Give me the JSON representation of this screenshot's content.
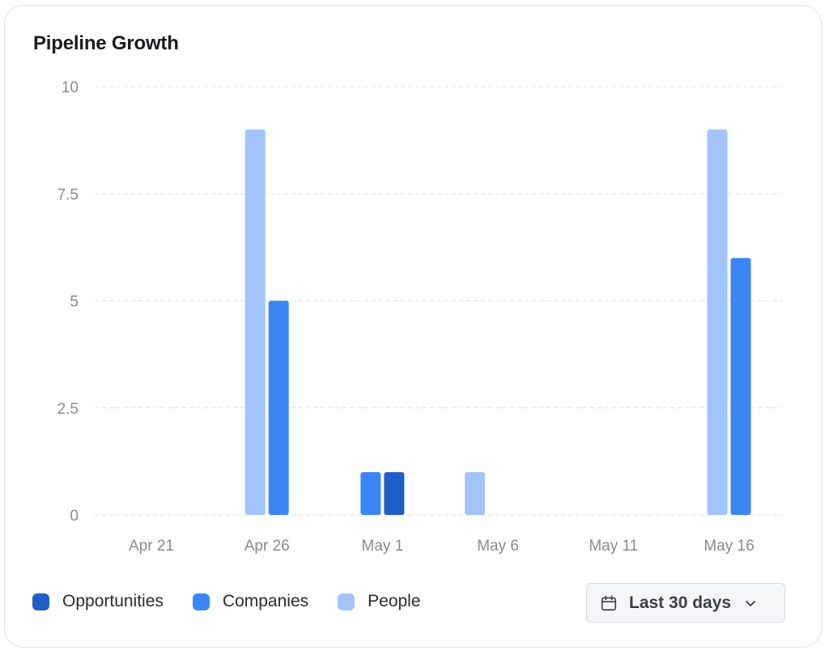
{
  "card": {
    "title": "Pipeline Growth"
  },
  "colors": {
    "opportunities": "#1f5fc7",
    "companies": "#3b86f6",
    "people": "#a1c4fa",
    "grid": "#dddfe3",
    "tick": "#8a8a90"
  },
  "legend": [
    {
      "name": "Opportunities",
      "color": "#1f5fc7"
    },
    {
      "name": "Companies",
      "color": "#3b86f6"
    },
    {
      "name": "People",
      "color": "#a1c4fa"
    }
  ],
  "date_range": {
    "label": "Last 30 days",
    "icon": "calendar-icon",
    "chevron": "chevron-down-icon"
  },
  "chart_data": {
    "type": "bar",
    "title": "Pipeline Growth",
    "x_ticks": [
      "Apr 21",
      "Apr 26",
      "May 1",
      "May 6",
      "May 11",
      "May 16"
    ],
    "y_ticks": [
      "0",
      "2.5",
      "5",
      "7.5",
      "10"
    ],
    "ylim": [
      0,
      10
    ],
    "grid": true,
    "legend_position": "bottom-left",
    "bars": [
      {
        "date": "Apr 26",
        "series": "People",
        "value": 9
      },
      {
        "date": "Apr 26",
        "series": "Companies",
        "value": 5
      },
      {
        "date": "May 1",
        "series": "Companies",
        "value": 1
      },
      {
        "date": "May 1",
        "series": "Opportunities",
        "value": 1
      },
      {
        "date": "May 5",
        "series": "People",
        "value": 1
      },
      {
        "date": "May 16",
        "series": "People",
        "value": 9
      },
      {
        "date": "May 16",
        "series": "Companies",
        "value": 6
      }
    ]
  }
}
